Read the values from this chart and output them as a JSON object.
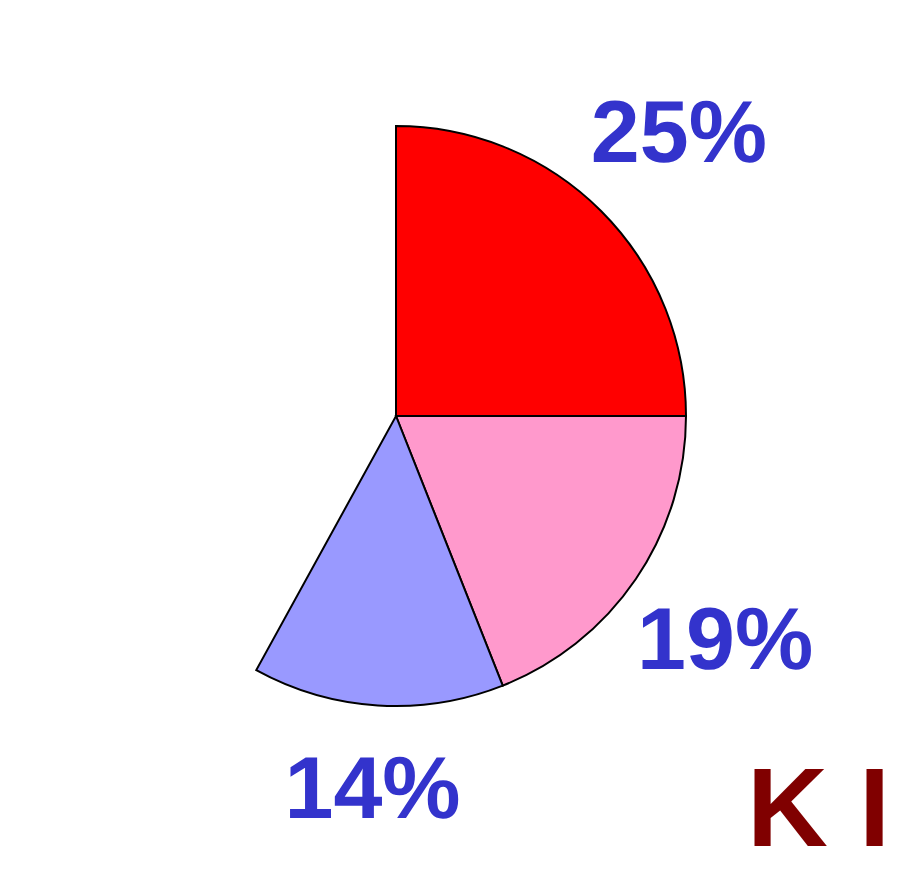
{
  "chart_data": {
    "type": "pie",
    "categories": [
      null,
      null,
      null
    ],
    "values": [
      25,
      19,
      14
    ],
    "colors": [
      "#ff0000",
      "#ff99cc",
      "#9999ff"
    ],
    "value_labels": [
      "25%",
      "19%",
      "14%"
    ],
    "annotations": [
      "K I"
    ]
  }
}
